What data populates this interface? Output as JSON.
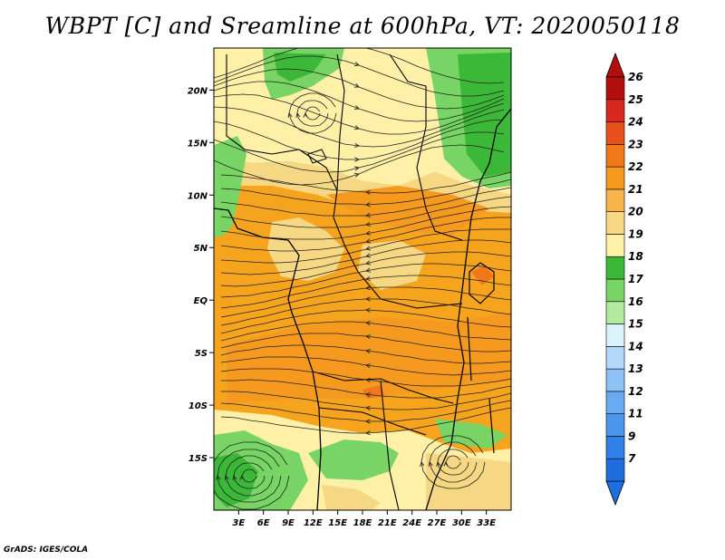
{
  "title": "WBPT [C] and Sreamline at 600hPa, VT: 2020050118",
  "footer": "GrADS: IGES/COLA",
  "map": {
    "type": "heatmap",
    "variable": "WBPT [C]",
    "overlay": "Streamline",
    "level": "600hPa",
    "valid_time": "2020050118",
    "lat_range": [
      -20,
      24
    ],
    "lon_range": [
      0,
      36
    ],
    "lat_ticks": [
      "20N",
      "15N",
      "10N",
      "5N",
      "EQ",
      "5S",
      "10S",
      "15S"
    ],
    "lat_values": [
      20,
      15,
      10,
      5,
      0,
      -5,
      -10,
      -15
    ],
    "lon_ticks": [
      "3E",
      "6E",
      "9E",
      "12E",
      "15E",
      "18E",
      "21E",
      "24E",
      "27E",
      "30E",
      "33E"
    ],
    "lon_values": [
      3,
      6,
      9,
      12,
      15,
      18,
      21,
      24,
      27,
      30,
      33
    ]
  },
  "colorbar": {
    "labels": [
      "7",
      "9",
      "11",
      "12",
      "13",
      "14",
      "15",
      "16",
      "17",
      "18",
      "19",
      "20",
      "21",
      "22",
      "23",
      "24",
      "25",
      "26"
    ],
    "colors": [
      "#1e6ee0",
      "#2f80e8",
      "#4a96ee",
      "#6aaaf2",
      "#8ec2f6",
      "#b4d8fa",
      "#dcf2fa",
      "#b4eaa0",
      "#78d464",
      "#3cb838",
      "#fff0a8",
      "#f6d884",
      "#f8b44a",
      "#f59a1e",
      "#f0781a",
      "#e8501c",
      "#d82820",
      "#b40f0f"
    ]
  },
  "colors": {
    "land_bg": "#f6a41e",
    "coast": "#000000",
    "streamline": "#222222"
  }
}
